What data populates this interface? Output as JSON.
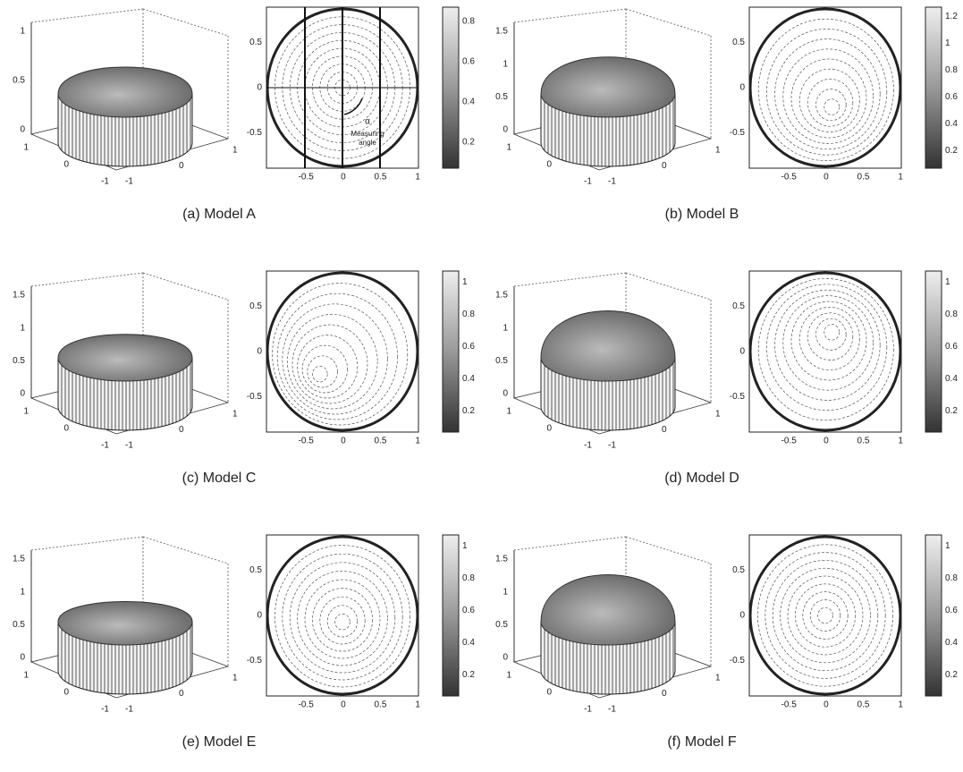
{
  "panels": [
    {
      "caption": "(a) Model A",
      "surface": {
        "zticks": [
          "1",
          "0.5",
          "0"
        ],
        "xticks": [
          "1",
          "0",
          "-1"
        ],
        "yticks": [
          "-1",
          "0",
          "1"
        ]
      },
      "contour": {
        "xticks": [
          "-0.5",
          "0",
          "0.5",
          "1"
        ],
        "yticks": [
          "0.5",
          "0",
          "-0.5"
        ],
        "annotations": [
          "α",
          "Measuring",
          "angle"
        ]
      },
      "colorbar": {
        "ticks": [
          "0.8",
          "0.6",
          "0.4",
          "0.2"
        ]
      }
    },
    {
      "caption": "(b) Model B",
      "surface": {
        "zticks": [
          "1.5",
          "1",
          "0.5",
          "0"
        ],
        "xticks": [
          "1",
          "0",
          "-1"
        ],
        "yticks": [
          "-1",
          "0",
          "1"
        ]
      },
      "contour": {
        "xticks": [
          "-0.5",
          "0",
          "0.5",
          "1"
        ],
        "yticks": [
          "0.5",
          "0",
          "-0.5"
        ]
      },
      "colorbar": {
        "ticks": [
          "1.2",
          "1",
          "0.8",
          "0.6",
          "0.4",
          "0.2"
        ]
      }
    },
    {
      "caption": "(c) Model C",
      "surface": {
        "zticks": [
          "1.5",
          "1",
          "0.5",
          "0"
        ],
        "xticks": [
          "1",
          "0",
          "-1"
        ],
        "yticks": [
          "-1",
          "0",
          "1"
        ]
      },
      "contour": {
        "xticks": [
          "-0.5",
          "0",
          "0.5",
          "1"
        ],
        "yticks": [
          "0.5",
          "0",
          "-0.5"
        ]
      },
      "colorbar": {
        "ticks": [
          "1",
          "0.8",
          "0.6",
          "0.4",
          "0.2"
        ]
      }
    },
    {
      "caption": "(d) Model D",
      "surface": {
        "zticks": [
          "1.5",
          "1",
          "0.5",
          "0"
        ],
        "xticks": [
          "1",
          "0",
          "-1"
        ],
        "yticks": [
          "-1",
          "0",
          "1"
        ]
      },
      "contour": {
        "xticks": [
          "-0.5",
          "0",
          "0.5",
          "1"
        ],
        "yticks": [
          "0.5",
          "0",
          "-0.5"
        ]
      },
      "colorbar": {
        "ticks": [
          "1",
          "0.8",
          "0.6",
          "0.4",
          "0.2"
        ]
      }
    },
    {
      "caption": "(e) Model E",
      "surface": {
        "zticks": [
          "1.5",
          "1",
          "0.5",
          "0"
        ],
        "xticks": [
          "1",
          "0",
          "-1"
        ],
        "yticks": [
          "-1",
          "0",
          "1"
        ]
      },
      "contour": {
        "xticks": [
          "-0.5",
          "0",
          "0.5",
          "1"
        ],
        "yticks": [
          "0.5",
          "0",
          "-0.5"
        ]
      },
      "colorbar": {
        "ticks": [
          "1",
          "0.8",
          "0.6",
          "0.4",
          "0.2"
        ]
      }
    },
    {
      "caption": "(f) Model F",
      "surface": {
        "zticks": [
          "1.5",
          "1",
          "0.5",
          "0"
        ],
        "xticks": [
          "1",
          "0",
          "-1"
        ],
        "yticks": [
          "-1",
          "0",
          "1"
        ]
      },
      "contour": {
        "xticks": [
          "-0.5",
          "0",
          "0.5",
          "1"
        ],
        "yticks": [
          "0.5",
          "0",
          "-0.5"
        ]
      },
      "colorbar": {
        "ticks": [
          "1",
          "0.8",
          "0.6",
          "0.4",
          "0.2"
        ]
      }
    }
  ]
}
